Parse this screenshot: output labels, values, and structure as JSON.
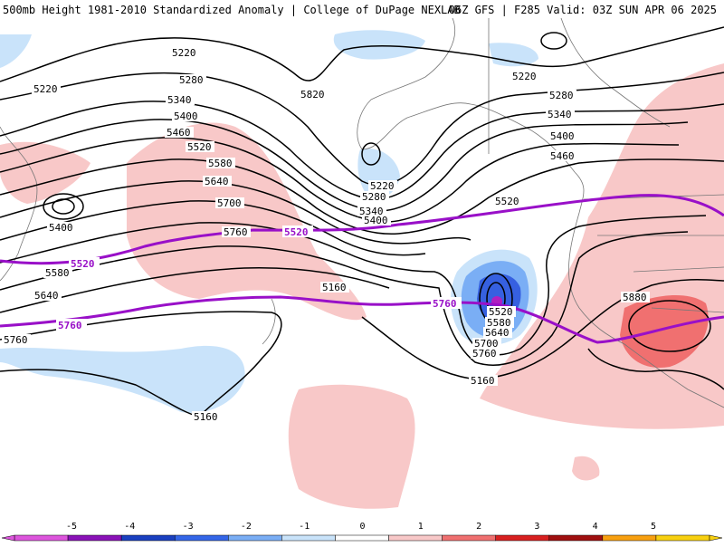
{
  "header": {
    "left_title": "500mb Height 1981-2010 Standardized Anomaly | College of DuPage NEXLAB",
    "right_title": "06Z GFS | F285 Valid: 03Z SUN APR 06 2025"
  },
  "colors": {
    "contour": "#000000",
    "reference_contour": "#9910c8",
    "coast": "#777777",
    "anom_neg1": "#c9e3fa",
    "anom_neg2": "#7aaef5",
    "anom_neg3": "#3660e0",
    "anom_pos1": "#f8c8c8",
    "anom_pos2": "#f07070"
  },
  "contour_labels": {
    "black": [
      "5220",
      "5280",
      "5340",
      "5400",
      "5460",
      "5520",
      "5580",
      "5640",
      "5700",
      "5760",
      "5820",
      "5160",
      "5880"
    ],
    "purple": [
      "5520",
      "5760"
    ]
  },
  "colorbar": {
    "tick_labels": [
      "-5",
      "-4",
      "-3",
      "-2",
      "-1",
      "0",
      "1",
      "2",
      "3",
      "4",
      "5"
    ],
    "colors": [
      "#dd55dd",
      "#8a12b8",
      "#1a40c0",
      "#3466e8",
      "#7aaef5",
      "#c9e3fa",
      "#ffffff",
      "#f8c8c8",
      "#f07070",
      "#d82020",
      "#a01010",
      "#f8a010",
      "#f8d010"
    ]
  }
}
